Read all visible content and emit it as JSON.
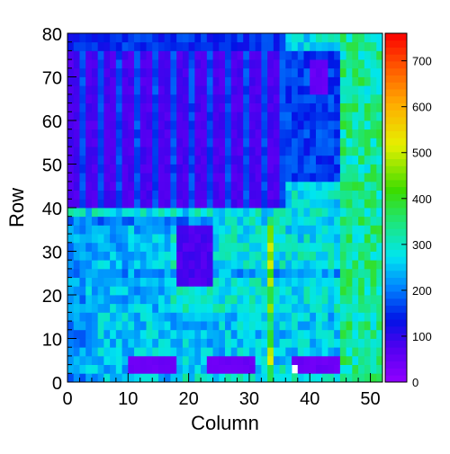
{
  "chart_data": {
    "type": "heatmap",
    "title": "",
    "xlabel": "Column",
    "ylabel": "Row",
    "x_range": [
      0,
      52
    ],
    "y_range": [
      0,
      80
    ],
    "x_bin_width": 1,
    "y_bin_width": 2,
    "x_ticks": [
      0,
      10,
      20,
      30,
      40,
      50
    ],
    "y_ticks": [
      0,
      10,
      20,
      30,
      40,
      50,
      60,
      70,
      80
    ],
    "z_range": [
      0,
      760
    ],
    "z_ticks": [
      0,
      100,
      200,
      300,
      400,
      500,
      600,
      700
    ],
    "colormap": "rainbow (purple → blue → cyan → green → yellow → orange → red)",
    "grid": false,
    "regions": [
      {
        "description": "noisy background",
        "columns": [
          0,
          52
        ],
        "rows": [
          0,
          80
        ],
        "value": 280
      },
      {
        "description": "left strip",
        "columns": [
          0,
          3
        ],
        "rows": [
          0,
          38
        ],
        "value": 215
      },
      {
        "description": "columns 3-17 band",
        "columns": [
          3,
          17
        ],
        "rows": [
          0,
          38
        ],
        "value": 245
      },
      {
        "description": "rows 24-26 dip",
        "columns": [
          0,
          52
        ],
        "rows": [
          24,
          26
        ],
        "value": 225
      },
      {
        "description": "row 22 line",
        "columns": [
          0,
          52
        ],
        "rows": [
          22,
          23
        ],
        "value": 350
      },
      {
        "description": "lower band",
        "columns": [
          5,
          45
        ],
        "rows": [
          4,
          16
        ],
        "value": 255
      },
      {
        "description": "rows 36-38 band",
        "columns": [
          2,
          24
        ],
        "rows": [
          36,
          38
        ],
        "value": 200
      },
      {
        "description": "column 33 line",
        "columns": [
          33,
          34
        ],
        "rows": [
          0,
          38
        ],
        "value": 430
      },
      {
        "description": "lower-left block",
        "columns": [
          10,
          18
        ],
        "rows": [
          2,
          6
        ],
        "value": 45
      },
      {
        "description": "lower-middle block",
        "columns": [
          23,
          31
        ],
        "rows": [
          2,
          6
        ],
        "value": 45
      },
      {
        "description": "lower-right block",
        "columns": [
          37,
          45
        ],
        "rows": [
          2,
          6
        ],
        "value": 45
      },
      {
        "description": "middle block",
        "columns": [
          18,
          24
        ],
        "rows": [
          22,
          36
        ],
        "value": 80
      },
      {
        "description": "upper-left region",
        "columns": [
          0,
          36
        ],
        "rows": [
          40,
          78
        ],
        "value": 80
      },
      {
        "description": "upper-middle region",
        "columns": [
          36,
          45
        ],
        "rows": [
          46,
          76
        ],
        "value": 160
      },
      {
        "description": "upper-right strip",
        "columns": [
          45,
          52
        ],
        "rows": [
          0,
          80
        ],
        "value": 330
      },
      {
        "description": "upper-right block",
        "columns": [
          40,
          43
        ],
        "rows": [
          66,
          74
        ],
        "value": 50
      },
      {
        "description": "top band",
        "columns": [
          0,
          36
        ],
        "rows": [
          76,
          80
        ],
        "value": 150
      }
    ],
    "empty_bins": [
      [
        37,
        2
      ]
    ]
  }
}
